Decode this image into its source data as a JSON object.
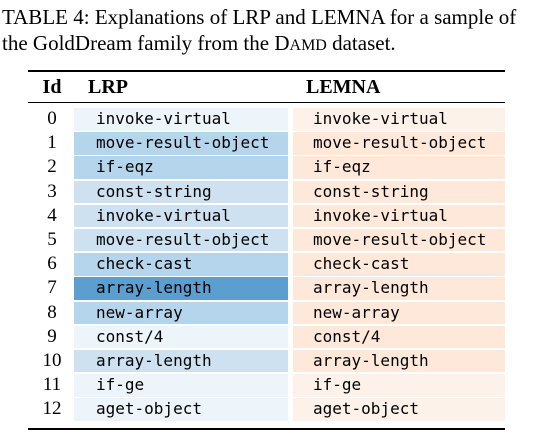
{
  "caption": {
    "label": "TABLE 4:",
    "text_before": " Explanations of LRP and LEMNA for a sample of the GoldDream family from the ",
    "dataset_first": "D",
    "dataset_rest": "AMD",
    "text_after": " dataset."
  },
  "table": {
    "headers": {
      "id": "Id",
      "lrp": "LRP",
      "lemna": "LEMNA"
    },
    "colors": {
      "lrp_very_light": "#edf4fa",
      "lrp_light": "#cde1f1",
      "lrp_medium": "#b5d5ed",
      "lrp_dark": "#5a9fd0",
      "lemna_very_light": "#fdf2ea",
      "lemna_light": "#fde8da"
    },
    "rows": [
      {
        "id": "0",
        "lrp": "invoke-virtual",
        "lemna": "invoke-virtual",
        "lrp_weight": "very_light",
        "lemna_weight": "very_light"
      },
      {
        "id": "1",
        "lrp": "move-result-object",
        "lemna": "move-result-object",
        "lrp_weight": "medium",
        "lemna_weight": "light"
      },
      {
        "id": "2",
        "lrp": "if-eqz",
        "lemna": "if-eqz",
        "lrp_weight": "medium",
        "lemna_weight": "light"
      },
      {
        "id": "3",
        "lrp": "const-string",
        "lemna": "const-string",
        "lrp_weight": "light",
        "lemna_weight": "light"
      },
      {
        "id": "4",
        "lrp": "invoke-virtual",
        "lemna": "invoke-virtual",
        "lrp_weight": "light",
        "lemna_weight": "light"
      },
      {
        "id": "5",
        "lrp": "move-result-object",
        "lemna": "move-result-object",
        "lrp_weight": "light",
        "lemna_weight": "light"
      },
      {
        "id": "6",
        "lrp": "check-cast",
        "lemna": "check-cast",
        "lrp_weight": "medium",
        "lemna_weight": "light"
      },
      {
        "id": "7",
        "lrp": "array-length",
        "lemna": "array-length",
        "lrp_weight": "dark",
        "lemna_weight": "light"
      },
      {
        "id": "8",
        "lrp": "new-array",
        "lemna": "new-array",
        "lrp_weight": "medium",
        "lemna_weight": "light"
      },
      {
        "id": "9",
        "lrp": "const/4",
        "lemna": "const/4",
        "lrp_weight": "very_light",
        "lemna_weight": "light"
      },
      {
        "id": "10",
        "lrp": "array-length",
        "lemna": "array-length",
        "lrp_weight": "light",
        "lemna_weight": "light"
      },
      {
        "id": "11",
        "lrp": "if-ge",
        "lemna": "if-ge",
        "lrp_weight": "very_light",
        "lemna_weight": "very_light"
      },
      {
        "id": "12",
        "lrp": "aget-object",
        "lemna": "aget-object",
        "lrp_weight": "very_light",
        "lemna_weight": "very_light"
      }
    ]
  }
}
